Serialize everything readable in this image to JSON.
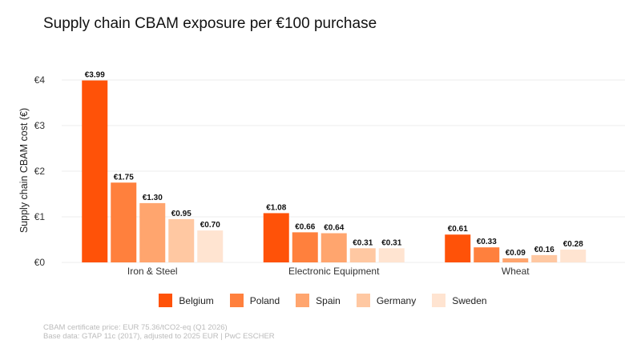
{
  "chart_data": {
    "type": "bar",
    "title": "Supply chain CBAM exposure per €100 purchase",
    "xlabel": "",
    "ylabel": "Supply chain CBAM cost (€)",
    "ylim": [
      0,
      4.1
    ],
    "yticks": [
      0,
      1,
      2,
      3,
      4
    ],
    "ytick_labels": [
      "€0",
      "€1",
      "€2",
      "€3",
      "€4"
    ],
    "grid": true,
    "legend_position": "bottom",
    "categories": [
      "Iron & Steel",
      "Electronic Equipment",
      "Wheat"
    ],
    "series": [
      {
        "name": "Belgium",
        "color": "#FF5208",
        "values": [
          3.99,
          1.08,
          0.61
        ],
        "labels": [
          "€3.99",
          "€1.08",
          "€0.61"
        ]
      },
      {
        "name": "Poland",
        "color": "#FF803D",
        "values": [
          1.75,
          0.66,
          0.33
        ],
        "labels": [
          "€1.75",
          "€0.66",
          "€0.33"
        ]
      },
      {
        "name": "Spain",
        "color": "#FFA56E",
        "values": [
          1.3,
          0.64,
          0.09
        ],
        "labels": [
          "€1.30",
          "€0.64",
          "€0.09"
        ]
      },
      {
        "name": "Germany",
        "color": "#FFC8A2",
        "values": [
          0.95,
          0.31,
          0.16
        ],
        "labels": [
          "€0.95",
          "€0.31",
          "€0.16"
        ]
      },
      {
        "name": "Sweden",
        "color": "#FFE4D1",
        "values": [
          0.7,
          0.31,
          0.28
        ],
        "labels": [
          "€0.70",
          "€0.31",
          "€0.28"
        ]
      }
    ]
  },
  "footer": {
    "line1": "CBAM certificate price: EUR 75.36/tCO2-eq (Q1 2026)",
    "line2": "Base data: GTAP 11c (2017), adjusted to 2025 EUR | PwC ESCHER"
  }
}
